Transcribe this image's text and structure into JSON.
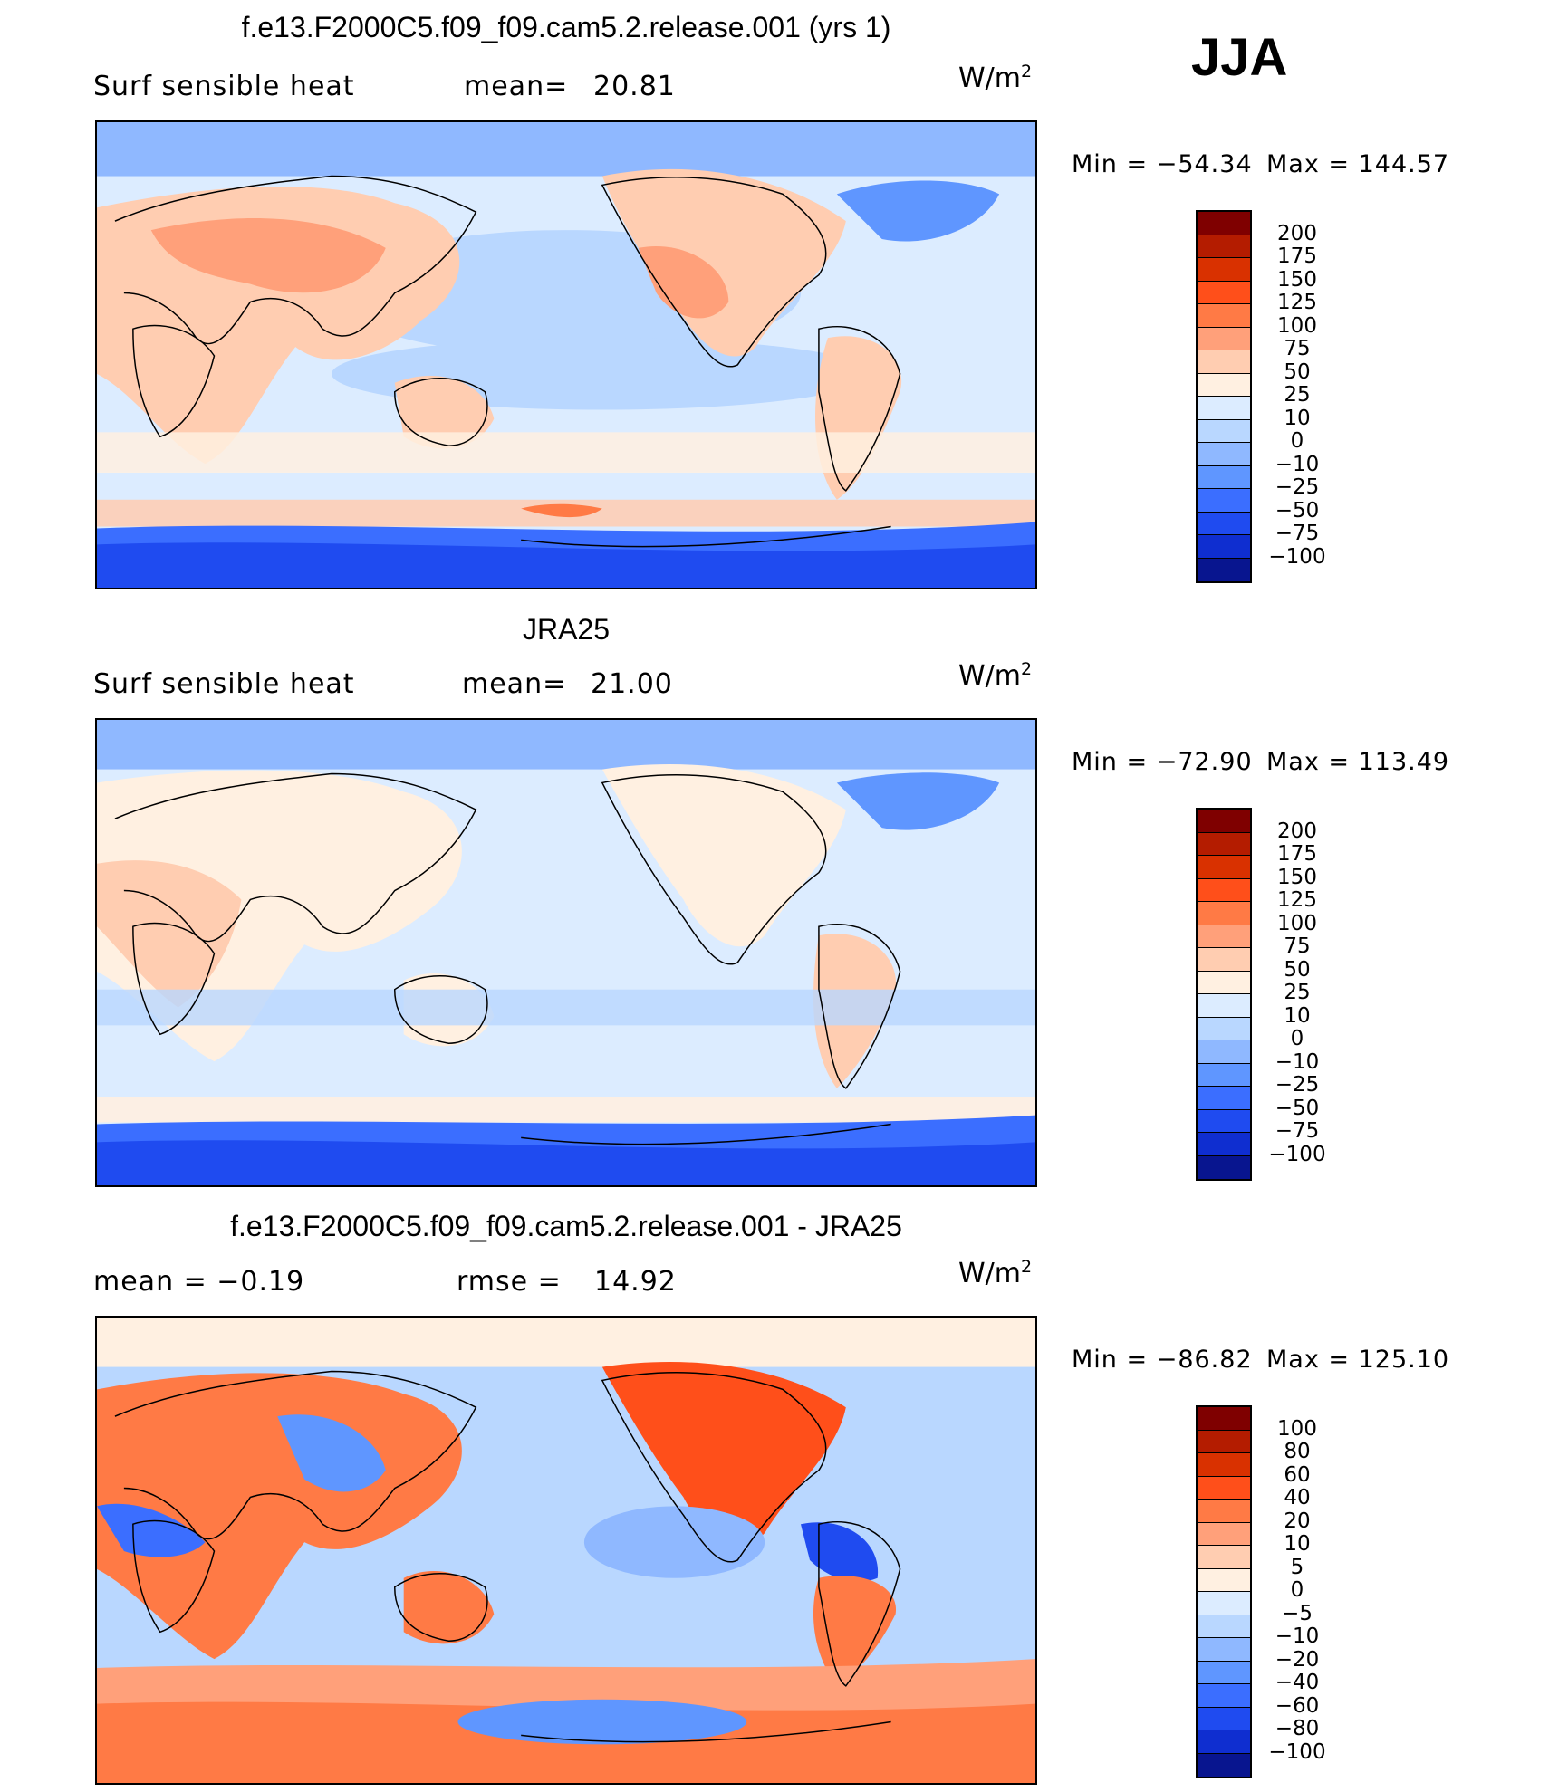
{
  "season": "JJA",
  "panels": [
    {
      "id": "model",
      "title": "f.e13.F2000C5.f09_f09.cam5.2.release.001 (yrs 1)",
      "left_label": "Surf  sensible  heat",
      "stat_label": "mean=",
      "stat_value": "20.81",
      "units_base": "W/m",
      "units_exp": "2",
      "min_label": "Min  =  −54.34",
      "max_label": "Max  =  144.57",
      "colorbar": {
        "colors": [
          "#7f0000",
          "#b41c00",
          "#d93100",
          "#ff4f1a",
          "#ff7a45",
          "#ffa07a",
          "#ffcdb1",
          "#fff0e1",
          "#dcecff",
          "#b9d7ff",
          "#8fb8ff",
          "#5f96ff",
          "#3b6eff",
          "#1f4bf0",
          "#0f2ed0",
          "#08158f"
        ],
        "ticks": [
          "200",
          "175",
          "150",
          "125",
          "100",
          "75",
          "50",
          "25",
          "10",
          "0",
          "−10",
          "−25",
          "−50",
          "−75",
          "−100"
        ]
      }
    },
    {
      "id": "obs",
      "title": "JRA25",
      "left_label": "Surf  sensible  heat",
      "stat_label": "mean=",
      "stat_value": "21.00",
      "units_base": "W/m",
      "units_exp": "2",
      "min_label": "Min  =  −72.90",
      "max_label": "Max  =  113.49",
      "colorbar": {
        "colors": [
          "#7f0000",
          "#b41c00",
          "#d93100",
          "#ff4f1a",
          "#ff7a45",
          "#ffa07a",
          "#ffcdb1",
          "#fff0e1",
          "#dcecff",
          "#b9d7ff",
          "#8fb8ff",
          "#5f96ff",
          "#3b6eff",
          "#1f4bf0",
          "#0f2ed0",
          "#08158f"
        ],
        "ticks": [
          "200",
          "175",
          "150",
          "125",
          "100",
          "75",
          "50",
          "25",
          "10",
          "0",
          "−10",
          "−25",
          "−50",
          "−75",
          "−100"
        ]
      }
    },
    {
      "id": "diff",
      "title": "f.e13.F2000C5.f09_f09.cam5.2.release.001 - JRA25",
      "left_label": "mean  =    −0.19",
      "stat_label": "rmse  =",
      "stat_value": "14.92",
      "units_base": "W/m",
      "units_exp": "2",
      "min_label": "Min  =  −86.82",
      "max_label": "Max  =  125.10",
      "colorbar": {
        "colors": [
          "#7f0000",
          "#b41c00",
          "#d93100",
          "#ff4f1a",
          "#ff7a45",
          "#ffa07a",
          "#ffcdb1",
          "#fff0e1",
          "#dcecff",
          "#b9d7ff",
          "#8fb8ff",
          "#5f96ff",
          "#3b6eff",
          "#1f4bf0",
          "#0f2ed0",
          "#08158f"
        ],
        "ticks": [
          "100",
          "80",
          "60",
          "40",
          "20",
          "10",
          "5",
          "0",
          "−5",
          "−10",
          "−20",
          "−40",
          "−60",
          "−80",
          "−100"
        ]
      }
    }
  ]
}
